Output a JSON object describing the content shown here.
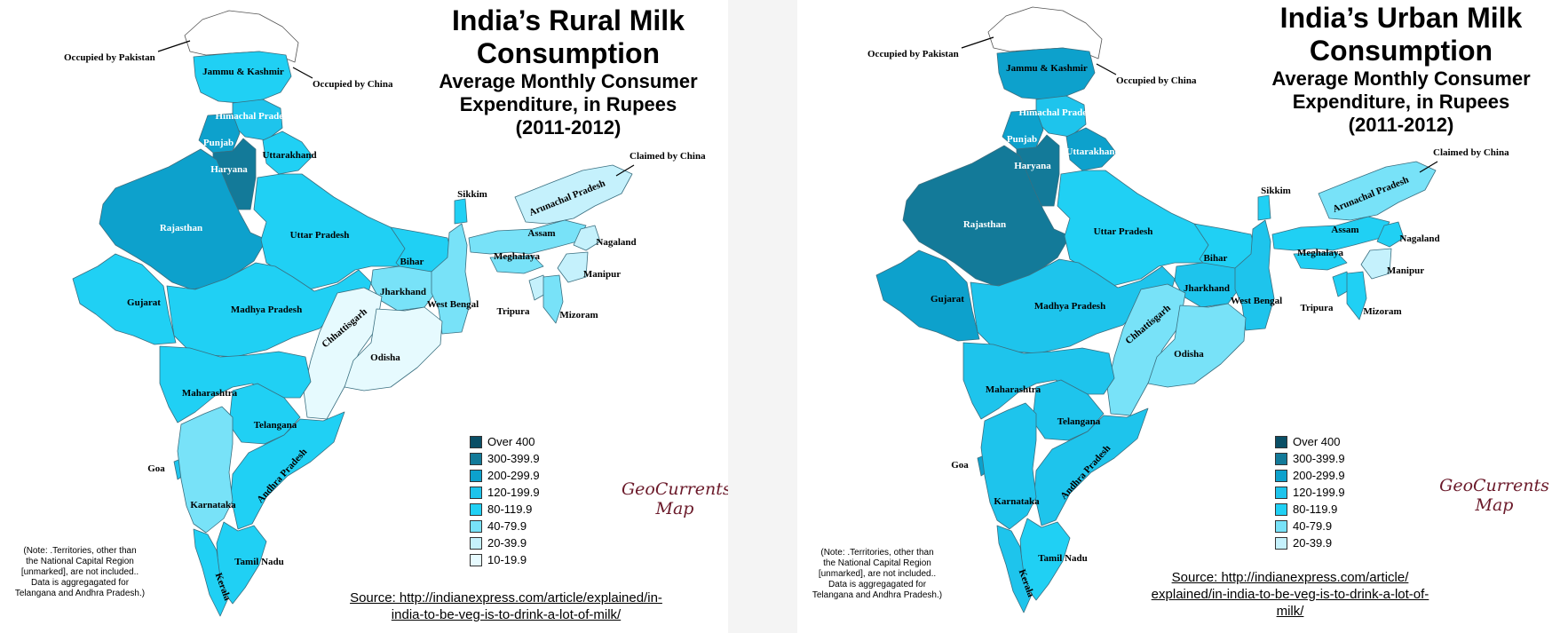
{
  "colors": {
    "over_400": "#0a4f66",
    "c300_399": "#137a99",
    "c200_299": "#0da1cc",
    "c120_199": "#1ec4ec",
    "c80_119": "#20d0f4",
    "c40_79": "#78e2f8",
    "c20_39": "#c5f1fc",
    "c10_19": "#e6fafe",
    "border": "#3a6f80"
  },
  "maps": [
    {
      "title_line1": "India’s Rural Milk",
      "title_line2": "Consumption",
      "subtitle_line1": "Average Monthly Consumer",
      "subtitle_line2": "Expenditure, in Rupees",
      "subtitle_line3": "(2011-2012)",
      "legend": [
        "Over 400",
        "300-399.9",
        "200-299.9",
        "120-199.9",
        "80-119.9",
        "40-79.9",
        "20-39.9",
        "10-19.9"
      ],
      "brand_line1": "GeoCurrents",
      "brand_line2": "Map",
      "note": [
        "(Note: .Territories, other than",
        "the National Capital Region",
        "[unmarked], are not included..",
        "Data is aggregagated for",
        "Telangana and Andhra Pradesh.)"
      ],
      "source": [
        "Source: http://indianexpress.com/article/explained/in-",
        "india-to-be-veg-is-to-drink-a-lot-of-milk/"
      ],
      "annotations": {
        "occupied_pakistan": "Occupied by Pakistan",
        "occupied_china": "Occupied by China",
        "claimed_china": "Claimed by China"
      },
      "states": {
        "jk": "Jammu & Kashmir",
        "hp": "Himachal Pradesh",
        "punjab": "Punjab",
        "haryana": "Haryana",
        "uttarakhand": "Uttarakhand",
        "rajasthan": "Rajasthan",
        "up": "Uttar Pradesh",
        "bihar": "Bihar",
        "sikkim": "Sikkim",
        "arunachal": "Arunachal Pradesh",
        "assam": "Assam",
        "meghalaya": "Meghalaya",
        "nagaland": "Nagaland",
        "manipur": "Manipur",
        "tripura": "Tripura",
        "mizoram": "Mizoram",
        "jharkhand": "Jharkhand",
        "wb": "West Bengal",
        "gujarat": "Gujarat",
        "mp": "Madhya Pradesh",
        "chhattisgarh": "Chhattisgarh",
        "odisha": "Odisha",
        "maharashtra": "Maharashtra",
        "telangana": "Telangana",
        "goa": "Goa",
        "ap": "Andhra Pradesh",
        "karnataka": "Karnataka",
        "tn": "Tamil Nadu",
        "kerala": "Kerala"
      }
    },
    {
      "title_line1": "India’s Urban Milk",
      "title_line2": "Consumption",
      "subtitle_line1": "Average Monthly Consumer",
      "subtitle_line2": "Expenditure, in Rupees",
      "subtitle_line3": "(2011-2012)",
      "legend": [
        "Over 400",
        "300-399.9",
        "200-299.9",
        "120-199.9",
        "80-119.9",
        "40-79.9",
        "20-39.9"
      ],
      "brand_line1": "GeoCurrents",
      "brand_line2": "Map",
      "note": [
        "(Note: .Territories, other than",
        "the National Capital Region",
        "[unmarked], are not included..",
        "Data is aggregagated for",
        "Telangana and Andhra Pradesh.)"
      ],
      "source": [
        "Source: http://indianexpress.com/article/",
        "explained/in-india-to-be-veg-is-to-drink-a-lot-of-",
        "milk/"
      ],
      "annotations": {
        "occupied_pakistan": "Occupied by Pakistan",
        "occupied_china": "Occupied by China",
        "claimed_china": "Claimed by China"
      },
      "states": {
        "jk": "Jammu & Kashmir",
        "hp": "Himachal Pradesh",
        "punjab": "Punjab",
        "haryana": "Haryana",
        "uttarakhand": "Uttarakhand",
        "rajasthan": "Rajasthan",
        "up": "Uttar Pradesh",
        "bihar": "Bihar",
        "sikkim": "Sikkim",
        "arunachal": "Arunachal Pradesh",
        "assam": "Assam",
        "meghalaya": "Meghalaya",
        "nagaland": "Nagaland",
        "manipur": "Manipur",
        "tripura": "Tripura",
        "mizoram": "Mizoram",
        "jharkhand": "Jharkhand",
        "wb": "West Bengal",
        "gujarat": "Gujarat",
        "mp": "Madhya Pradesh",
        "chhattisgarh": "Chhattisgarh",
        "odisha": "Odisha",
        "maharashtra": "Maharashtra",
        "telangana": "Telangana",
        "goa": "Goa",
        "ap": "Andhra Pradesh",
        "karnataka": "Karnataka",
        "tn": "Tamil Nadu",
        "kerala": "Kerala"
      }
    }
  ]
}
